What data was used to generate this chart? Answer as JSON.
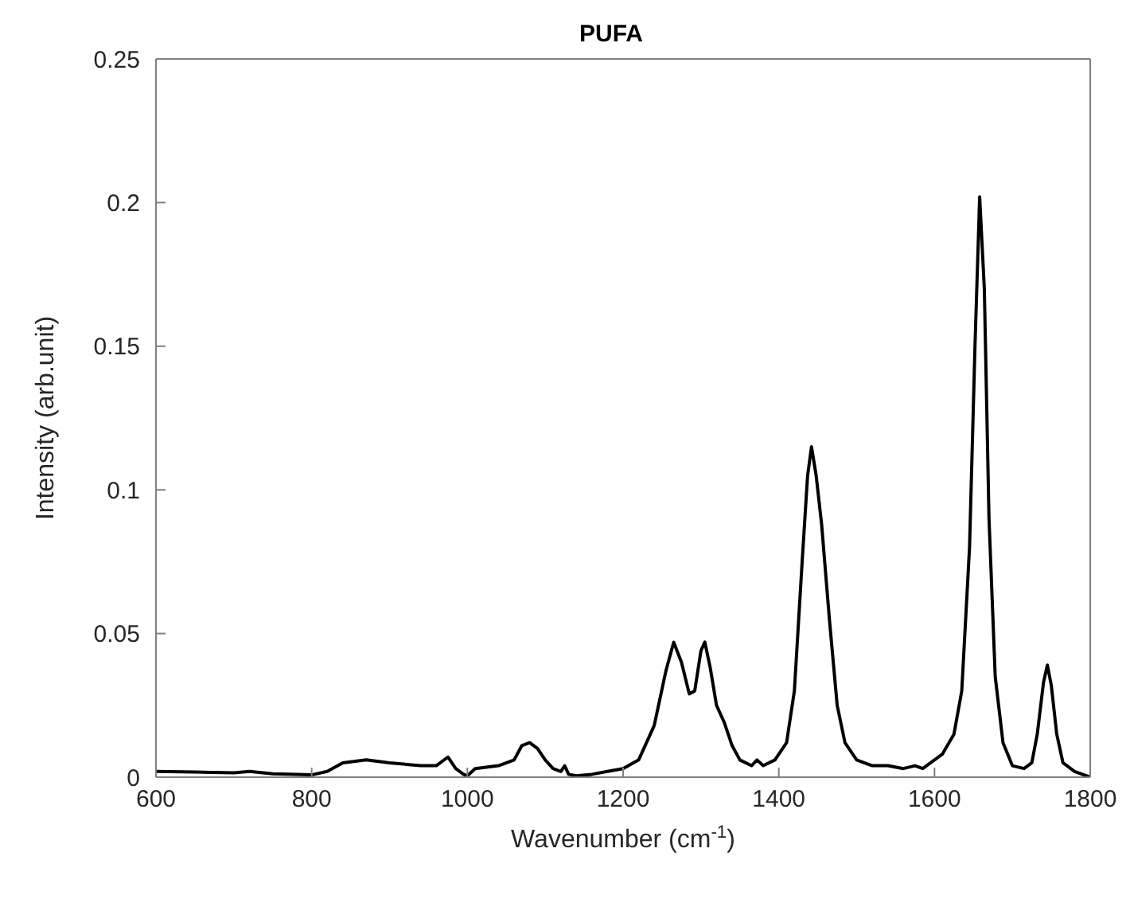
{
  "chart_data": {
    "type": "line",
    "title": "PUFA",
    "xlabel": "Wavenumber (cm$^{-1}$)",
    "ylabel": "Intensity (arb.unit)",
    "x": [
      600,
      650,
      700,
      720,
      750,
      800,
      820,
      840,
      870,
      900,
      940,
      960,
      975,
      985,
      995,
      1000,
      1010,
      1040,
      1060,
      1070,
      1080,
      1090,
      1100,
      1110,
      1120,
      1125,
      1130,
      1140,
      1160,
      1180,
      1200,
      1220,
      1240,
      1255,
      1265,
      1275,
      1285,
      1292,
      1300,
      1305,
      1312,
      1320,
      1330,
      1340,
      1350,
      1365,
      1372,
      1380,
      1395,
      1410,
      1420,
      1430,
      1437,
      1442,
      1448,
      1455,
      1465,
      1475,
      1485,
      1500,
      1520,
      1540,
      1560,
      1575,
      1585,
      1595,
      1610,
      1625,
      1635,
      1645,
      1652,
      1658,
      1664,
      1670,
      1678,
      1688,
      1700,
      1715,
      1725,
      1732,
      1740,
      1745,
      1750,
      1757,
      1765,
      1780,
      1800
    ],
    "series": [
      {
        "color": "#000000",
        "values": [
          0.002,
          0.0018,
          0.0015,
          0.002,
          0.0012,
          0.0008,
          0.002,
          0.005,
          0.006,
          0.005,
          0.004,
          0.004,
          0.007,
          0.003,
          0.001,
          0.0005,
          0.003,
          0.004,
          0.006,
          0.011,
          0.012,
          0.01,
          0.006,
          0.003,
          0.002,
          0.004,
          0.001,
          0.0005,
          0.001,
          0.002,
          0.003,
          0.006,
          0.018,
          0.037,
          0.047,
          0.04,
          0.029,
          0.03,
          0.044,
          0.047,
          0.038,
          0.025,
          0.019,
          0.011,
          0.006,
          0.004,
          0.006,
          0.004,
          0.006,
          0.012,
          0.03,
          0.075,
          0.105,
          0.115,
          0.105,
          0.088,
          0.055,
          0.025,
          0.012,
          0.006,
          0.004,
          0.004,
          0.003,
          0.004,
          0.003,
          0.005,
          0.008,
          0.015,
          0.03,
          0.08,
          0.15,
          0.202,
          0.17,
          0.09,
          0.035,
          0.012,
          0.004,
          0.003,
          0.005,
          0.015,
          0.033,
          0.039,
          0.032,
          0.015,
          0.005,
          0.002,
          0
        ]
      }
    ],
    "xlim": [
      600,
      1800
    ],
    "xticks": [
      600,
      800,
      1000,
      1200,
      1400,
      1600,
      1800
    ],
    "ylim": [
      0,
      0.25
    ],
    "yticks": [
      0,
      0.05,
      0.1,
      0.15,
      0.2,
      0.25
    ],
    "grid": false,
    "legend": false,
    "marker": "none",
    "line_style": "solid"
  }
}
